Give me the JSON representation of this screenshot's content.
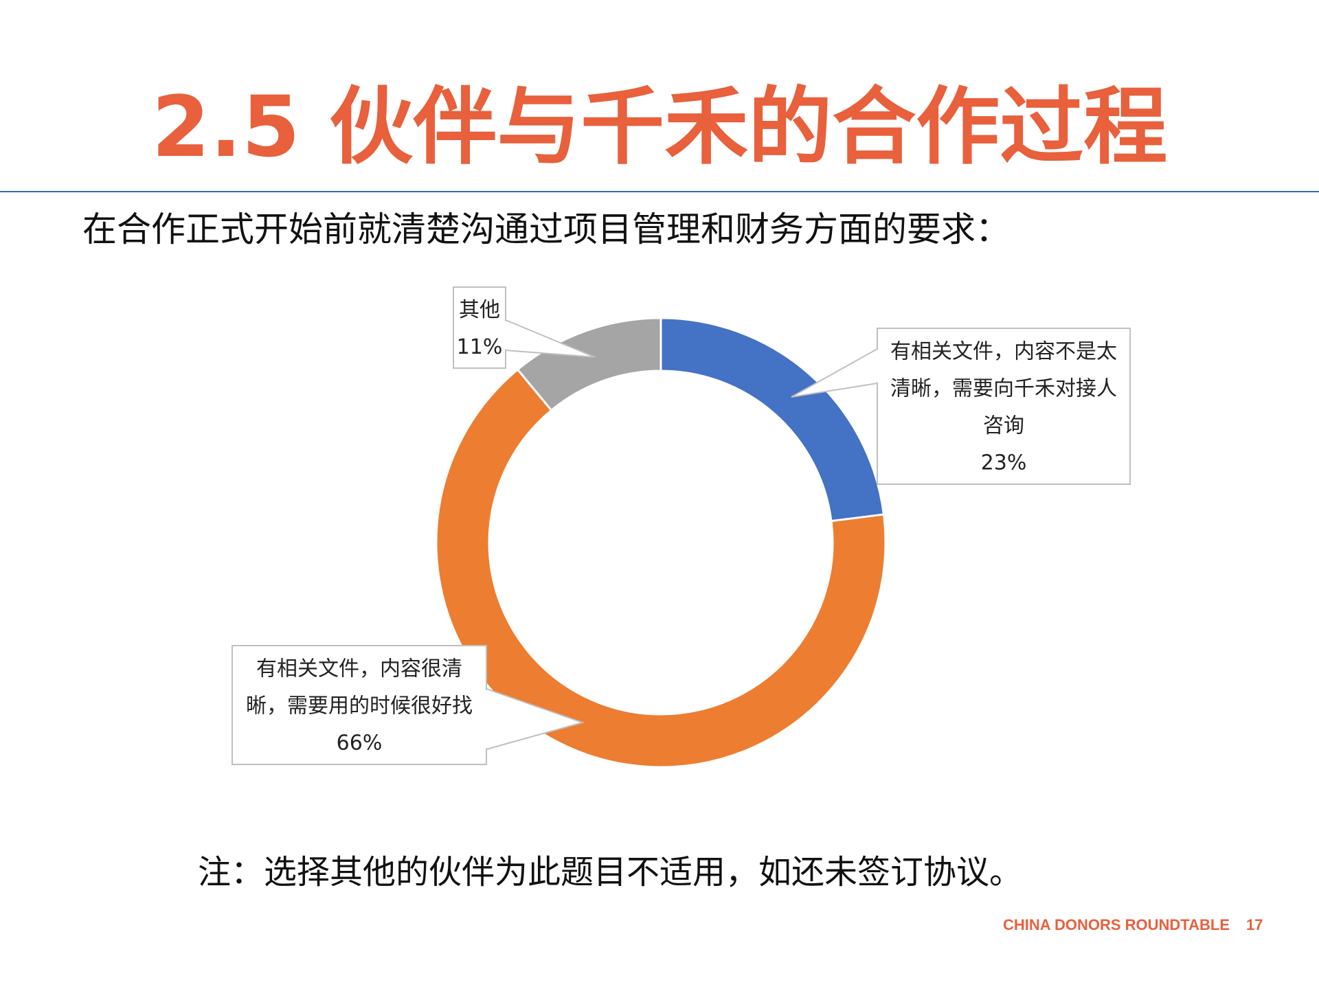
{
  "slide": {
    "title": "2.5 伙伴与千禾的合作过程",
    "subtitle": "在合作正式开始前就清楚沟通过项目管理和财务方面的要求：",
    "note": "注：选择其他的伙伴为此题目不适用，如还未签订协议。",
    "footer": {
      "org": "CHINA DONORS ROUNDTABLE",
      "page": "17"
    }
  },
  "chart_data": {
    "type": "pie",
    "variant": "donut",
    "title": "",
    "slices": [
      {
        "label": "有相关文件，内容不是太清晰，需要向千禾对接人咨询",
        "label_lines": [
          "有相关文件，内容不是太",
          "清晰，需要向千禾对接人",
          "咨询"
        ],
        "value": 23,
        "percent_label": "23%",
        "color": "#4472C4"
      },
      {
        "label": "有相关文件，内容很清晰，需要用的时候很好找",
        "label_lines": [
          "有相关文件，内容很清",
          "晰，需要用的时候很好找"
        ],
        "value": 66,
        "percent_label": "66%",
        "color": "#ED7D31"
      },
      {
        "label": "其他",
        "label_lines": [
          "其他"
        ],
        "value": 11,
        "percent_label": "11%",
        "color": "#A5A5A5"
      }
    ],
    "legend": "none",
    "data_labels": "callouts"
  }
}
